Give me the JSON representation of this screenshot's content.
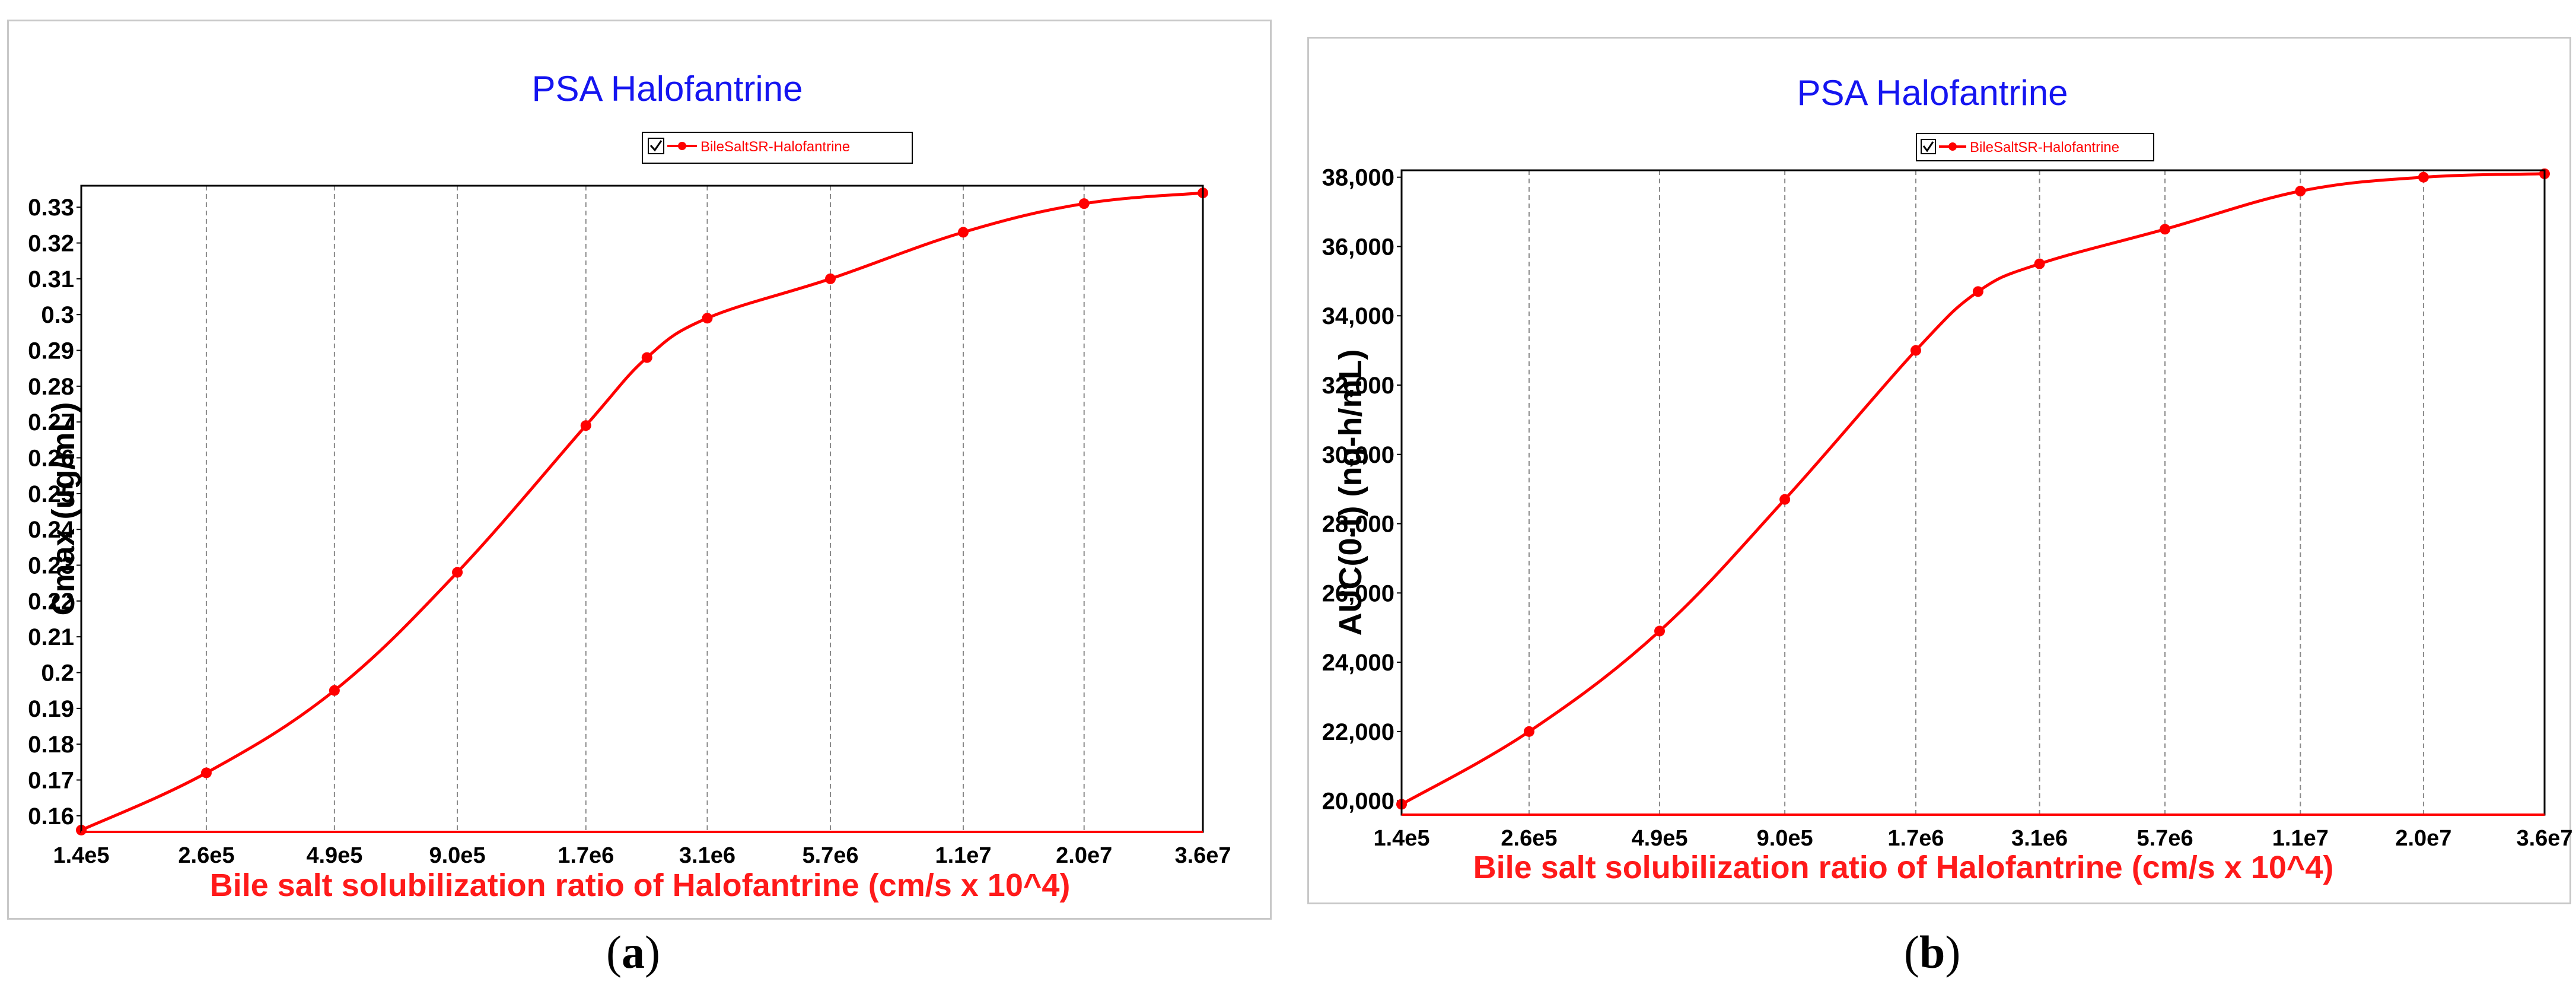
{
  "panels": [
    {
      "caption": "a",
      "chart_data": {
        "type": "line",
        "title": "PSA Halofantrine",
        "xlabel": "Bile salt solubilization ratio of Halofantrine (cm/s x 10^4)",
        "ylabel": "Cmax (ug/mL)",
        "x_scale": "log",
        "x_tick_values": [
          140000,
          260000,
          490000,
          900000,
          1700000,
          3100000,
          5700000,
          11000000,
          20000000,
          36000000
        ],
        "x_tick_labels": [
          "1.4e5",
          "2.6e5",
          "4.9e5",
          "9.0e5",
          "1.7e6",
          "3.1e6",
          "5.7e6",
          "1.1e7",
          "2.0e7",
          "3.6e7"
        ],
        "xlim": [
          140000,
          36000000
        ],
        "y_ticks": [
          0.16,
          0.17,
          0.18,
          0.19,
          0.2,
          0.21,
          0.22,
          0.23,
          0.24,
          0.25,
          0.26,
          0.27,
          0.28,
          0.29,
          0.3,
          0.31,
          0.32,
          0.33
        ],
        "y_tick_labels": [
          "0.16",
          "0.17",
          "0.18",
          "0.19",
          "0.2",
          "0.21",
          "0.22",
          "0.23",
          "0.24",
          "0.25",
          "0.26",
          "0.27",
          "0.28",
          "0.29",
          "0.3",
          "0.31",
          "0.32",
          "0.33"
        ],
        "ylim": [
          0.1555,
          0.336
        ],
        "grid": "vertical",
        "legend": "top-center",
        "series": [
          {
            "name": "BileSaltSR-Halofantrine",
            "color": "#ff0000",
            "x": [
              140000,
              260000,
              490000,
              900000,
              1700000,
              2300000,
              3100000,
              5700000,
              11000000,
              20000000,
              36000000
            ],
            "y": [
              0.156,
              0.172,
              0.195,
              0.228,
              0.269,
              0.288,
              0.299,
              0.31,
              0.323,
              0.331,
              0.334
            ]
          }
        ]
      }
    },
    {
      "caption": "b",
      "chart_data": {
        "type": "line",
        "title": "PSA Halofantrine",
        "xlabel": "Bile salt solubilization ratio of Halofantrine (cm/s x 10^4)",
        "ylabel": "AUC(0-t) (ng-h/mL)",
        "x_scale": "log",
        "x_tick_values": [
          140000,
          260000,
          490000,
          900000,
          1700000,
          3100000,
          5700000,
          11000000,
          20000000,
          36000000
        ],
        "x_tick_labels": [
          "1.4e5",
          "2.6e5",
          "4.9e5",
          "9.0e5",
          "1.7e6",
          "3.1e6",
          "5.7e6",
          "1.1e7",
          "2.0e7",
          "3.6e7"
        ],
        "xlim": [
          140000,
          36000000
        ],
        "y_ticks": [
          20000,
          22000,
          24000,
          26000,
          28000,
          30000,
          32000,
          34000,
          36000,
          38000
        ],
        "y_tick_labels": [
          "20,000",
          "22,000",
          "24,000",
          "26,000",
          "28,000",
          "30,000",
          "32,000",
          "34,000",
          "36,000",
          "38,000"
        ],
        "ylim": [
          19600,
          38200
        ],
        "grid": "vertical",
        "legend": "top-center",
        "series": [
          {
            "name": "BileSaltSR-Halofantrine",
            "color": "#ff0000",
            "x": [
              140000,
              260000,
              490000,
              900000,
              1700000,
              2300000,
              3100000,
              5700000,
              11000000,
              20000000,
              36000000
            ],
            "y": [
              19900,
              22000,
              24900,
              28700,
              33000,
              34700,
              35500,
              36500,
              37600,
              38000,
              38100
            ]
          }
        ]
      }
    }
  ]
}
